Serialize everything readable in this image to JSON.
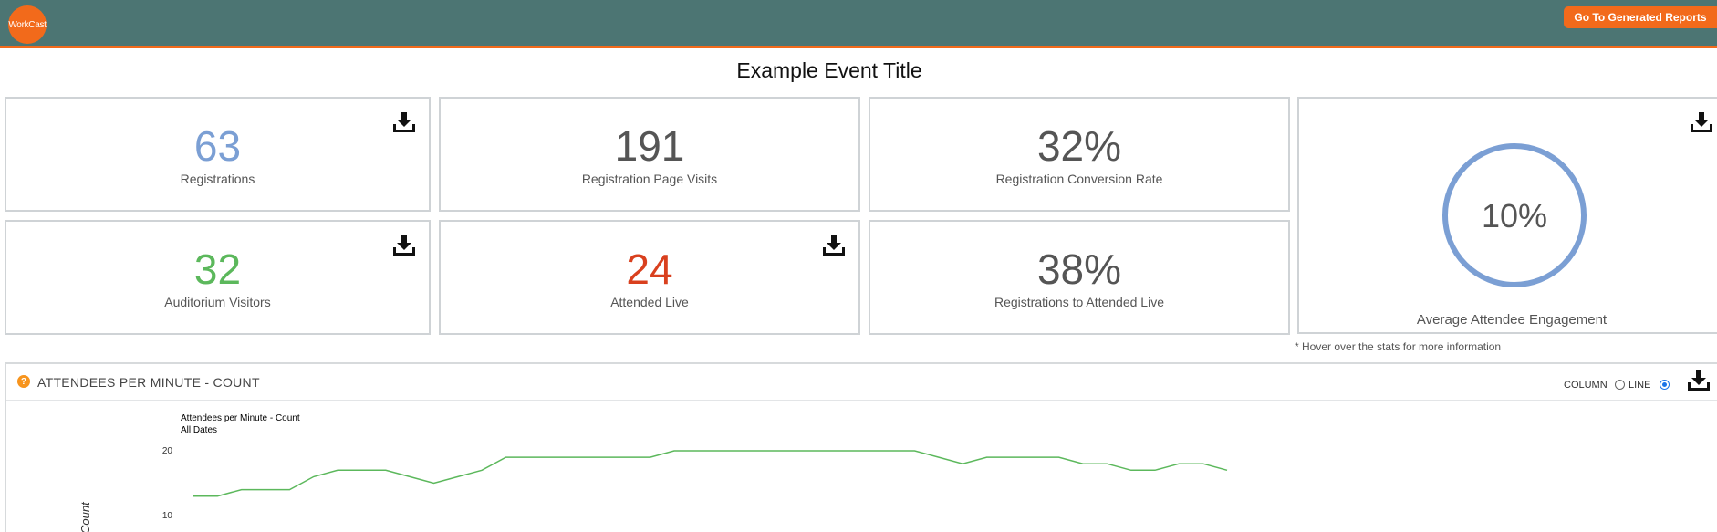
{
  "header": {
    "logo_text": "WorkCast",
    "reports_button": "Go To Generated Reports"
  },
  "event": {
    "title": "Example Event Title"
  },
  "stats": {
    "registrations": {
      "value": "63",
      "label": "Registrations",
      "color": "#7b9fd4"
    },
    "page_visits": {
      "value": "191",
      "label": "Registration Page Visits",
      "color": "#555555"
    },
    "conversion_rate": {
      "value": "32%",
      "label": "Registration Conversion Rate",
      "color": "#555555"
    },
    "auditorium_visitors": {
      "value": "32",
      "label": "Auditorium Visitors",
      "color": "#5cb85c"
    },
    "attended_live": {
      "value": "24",
      "label": "Attended Live",
      "color": "#d9401e"
    },
    "registrations_to_live": {
      "value": "38%",
      "label": "Registrations to Attended Live",
      "color": "#555555"
    }
  },
  "engagement": {
    "value": "10%",
    "fraction": 0.1,
    "label": "Average Attendee Engagement",
    "ring_color": "#7b9fd4",
    "progress_color": "#5cb85c"
  },
  "hover_note": "* Hover over the stats for more information",
  "chart_panel": {
    "heading": "ATTENDEES PER MINUTE - COUNT",
    "help_icon": "?",
    "options": {
      "column": "COLUMN",
      "line": "LINE",
      "selected": "line"
    }
  },
  "chart_data": {
    "type": "line",
    "title": "Attendees per Minute - Count",
    "subtitle": "All Dates",
    "ylabel": "Count",
    "yticks": [
      20,
      10
    ],
    "ylim": [
      0,
      20
    ],
    "series": [
      {
        "color": "#5cb85c",
        "values": [
          13,
          13,
          14,
          14,
          14,
          16,
          17,
          17,
          17,
          16,
          15,
          16,
          17,
          19,
          19,
          19,
          19,
          19,
          19,
          19,
          20,
          20,
          20,
          20,
          20,
          20,
          20,
          20,
          20,
          20,
          20,
          19,
          18,
          19,
          19,
          19,
          19,
          18,
          18,
          17,
          17,
          18,
          18,
          17
        ]
      }
    ]
  }
}
